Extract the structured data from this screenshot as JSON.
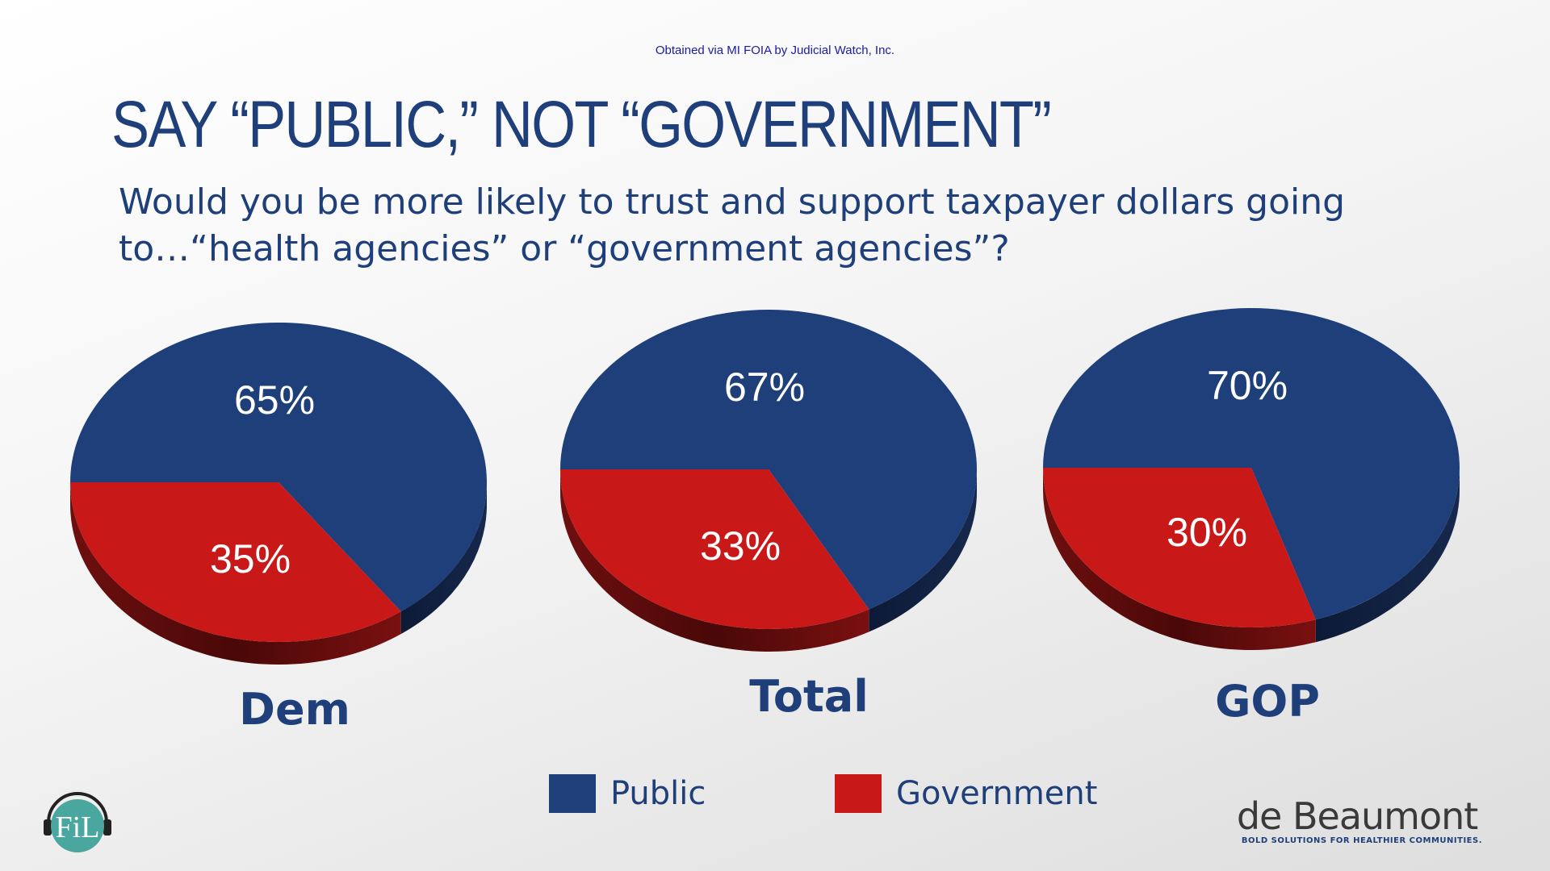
{
  "header": {
    "source_note": "Obtained via MI FOIA by Judicial Watch, Inc.",
    "title": "SAY “PUBLIC,” NOT “GOVERNMENT”",
    "question": "Would you be more likely to trust and support taxpayer dollars going to…“health agencies” or “government agencies”?"
  },
  "colors": {
    "public": "#1e3f7a",
    "government": "#c81818",
    "text": "#1e3f7a"
  },
  "chart_data": [
    {
      "type": "pie",
      "title": "Dem",
      "categories": [
        "Public",
        "Government"
      ],
      "values": [
        65,
        35
      ],
      "labels": [
        "65%",
        "35%"
      ]
    },
    {
      "type": "pie",
      "title": "Total",
      "categories": [
        "Public",
        "Government"
      ],
      "values": [
        67,
        33
      ],
      "labels": [
        "67%",
        "33%"
      ]
    },
    {
      "type": "pie",
      "title": "GOP",
      "categories": [
        "Public",
        "Government"
      ],
      "values": [
        70,
        30
      ],
      "labels": [
        "70%",
        "30%"
      ]
    }
  ],
  "legend": {
    "placement": "bottom-center",
    "items": [
      {
        "label": "Public",
        "color": "#1e3f7a"
      },
      {
        "label": "Government",
        "color": "#c81818"
      }
    ]
  },
  "branding": {
    "left_logo": "FiL",
    "name": "de Beaumont",
    "tagline": "BOLD SOLUTIONS FOR HEALTHIER COMMUNITIES."
  }
}
